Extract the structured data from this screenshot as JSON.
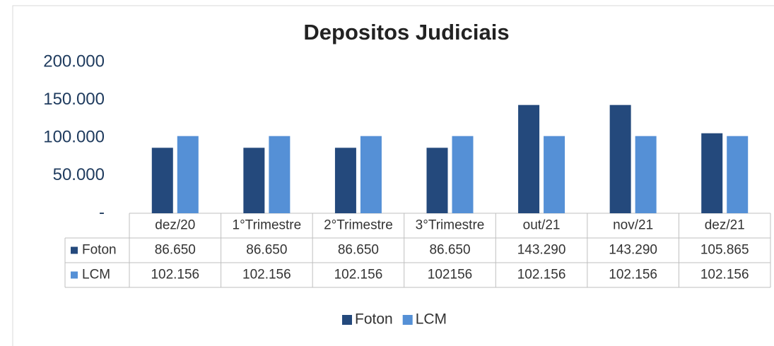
{
  "chart_data": {
    "type": "bar",
    "title": "Depositos Judiciais",
    "categories": [
      "dez/20",
      "1°Trimestre",
      "2°Trimestre",
      "3°Trimestre",
      "out/21",
      "nov/21",
      "dez/21"
    ],
    "series": [
      {
        "name": "Foton",
        "color": "#24497c",
        "values": [
          86650,
          86650,
          86650,
          86650,
          143290,
          143290,
          105865
        ],
        "value_labels": [
          "86.650",
          "86.650",
          "86.650",
          "86.650",
          "143.290",
          "143.290",
          "105.865"
        ]
      },
      {
        "name": "LCM",
        "color": "#5590d6",
        "values": [
          102156,
          102156,
          102156,
          102156,
          102156,
          102156,
          102156
        ],
        "value_labels": [
          "102.156",
          "102.156",
          "102.156",
          "102156",
          "102.156",
          "102.156",
          "102.156"
        ]
      }
    ],
    "ylim": [
      0,
      200000
    ],
    "yticks": [
      {
        "value": 0,
        "label": "-"
      },
      {
        "value": 50000,
        "label": "50.000"
      },
      {
        "value": 100000,
        "label": "100.000"
      },
      {
        "value": 150000,
        "label": "150.000"
      },
      {
        "value": 200000,
        "label": "200.000"
      }
    ],
    "grid": false,
    "legend": "bottom"
  }
}
